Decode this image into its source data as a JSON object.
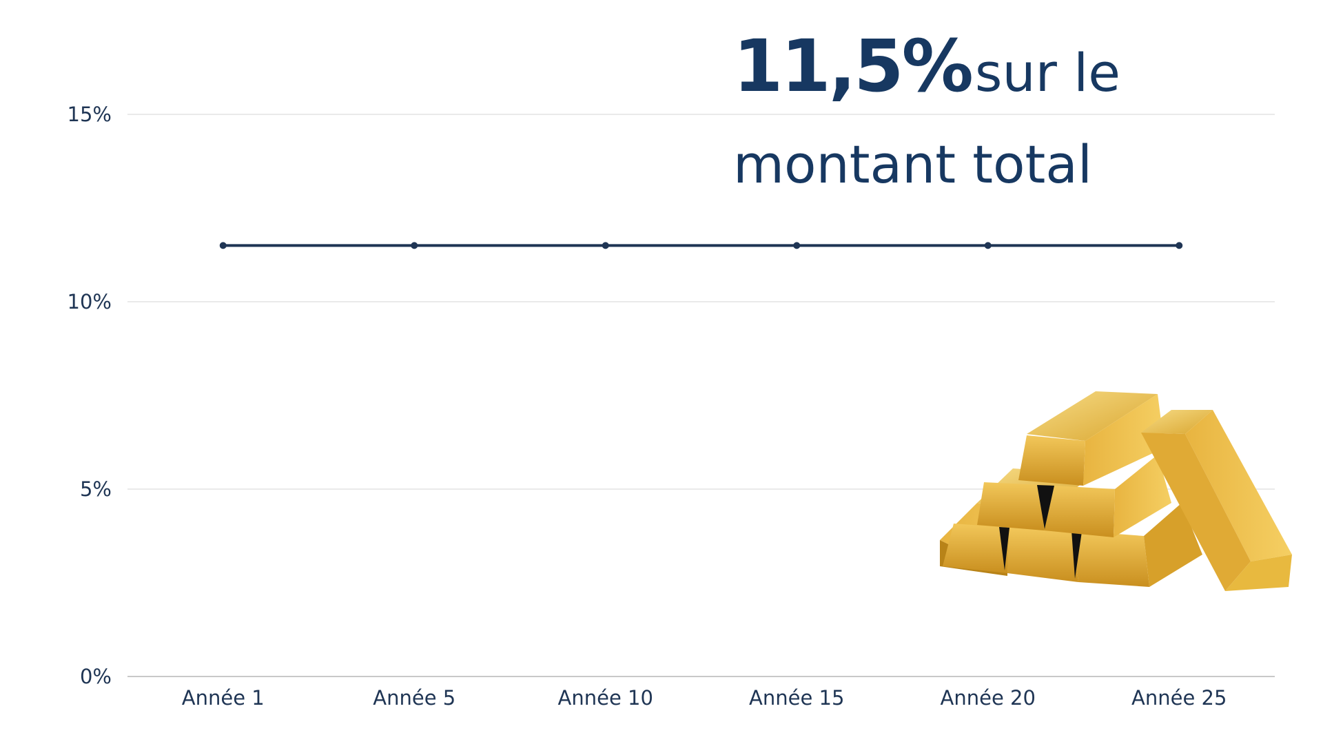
{
  "headline": {
    "value": "11,5%",
    "text_line1": "sur le",
    "text_line2": "montant total"
  },
  "colors": {
    "series": "#1f3554",
    "headline": "#173861",
    "grid": "#e3e3e3",
    "gold": "#e5b23b"
  },
  "decoration": {
    "icon": "gold-bars-icon"
  },
  "chart_data": {
    "type": "line",
    "categories": [
      "Année 1",
      "Année 5",
      "Année 10",
      "Année 15",
      "Année 20",
      "Année 25"
    ],
    "series": [
      {
        "values": [
          11.5,
          11.5,
          11.5,
          11.5,
          11.5,
          11.5
        ]
      }
    ],
    "yticks": [
      "0%",
      "5%",
      "10%",
      "15%"
    ],
    "ytick_values": [
      0,
      5,
      10,
      15
    ],
    "ylim": [
      0,
      15
    ],
    "grid": true,
    "title": "",
    "xlabel": "",
    "ylabel": ""
  }
}
